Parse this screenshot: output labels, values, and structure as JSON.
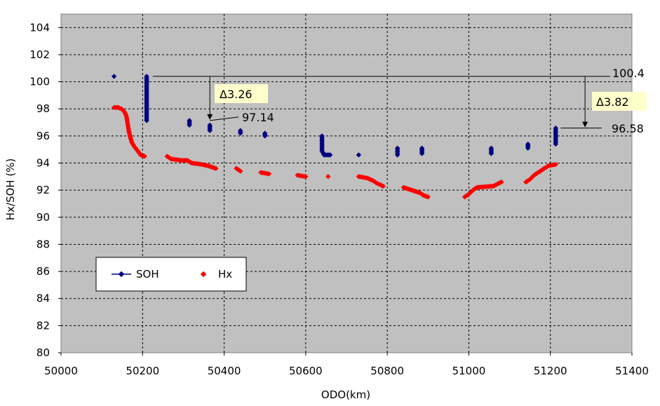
{
  "chart_data": {
    "type": "scatter",
    "xlabel": "ODO(km)",
    "ylabel": "Hx/SOH (%)",
    "xlim": [
      50000,
      51400
    ],
    "ylim": [
      80,
      105
    ],
    "xticks": [
      "50000",
      "50200",
      "50400",
      "50600",
      "50800",
      "51000",
      "51200",
      "51400"
    ],
    "yticks": [
      "80",
      "82",
      "84",
      "86",
      "88",
      "90",
      "92",
      "94",
      "96",
      "98",
      "100",
      "102",
      "104"
    ],
    "grid": true,
    "plot_background": "#c0c0c0",
    "legend_position": "bottom-left",
    "series": [
      {
        "name": "SOH",
        "color": "#000080",
        "marker": "diamond",
        "line": true,
        "points": [
          [
            50130,
            100.4
          ],
          [
            50210,
            100.4
          ],
          [
            50210,
            97.14
          ],
          [
            50315,
            97.14
          ],
          [
            50315,
            96.8
          ],
          [
            50365,
            96.8
          ],
          [
            50365,
            96.4
          ],
          [
            50440,
            96.4
          ],
          [
            50440,
            96.2
          ],
          [
            50500,
            96.2
          ],
          [
            50500,
            96.0
          ],
          [
            50640,
            96.0
          ],
          [
            50640,
            94.9
          ],
          [
            50645,
            94.6
          ],
          [
            50660,
            94.6
          ],
          [
            50730,
            94.6
          ],
          [
            50825,
            94.6
          ],
          [
            50825,
            95.1
          ],
          [
            50885,
            95.1
          ],
          [
            50885,
            94.7
          ],
          [
            51055,
            94.7
          ],
          [
            51055,
            95.1
          ],
          [
            51145,
            95.1
          ],
          [
            51145,
            95.4
          ],
          [
            51213,
            95.4
          ],
          [
            51213,
            96.58
          ]
        ]
      },
      {
        "name": "Hx",
        "color": "#ff0000",
        "marker": "diamond",
        "line": false,
        "points": [
          [
            50130,
            98.1
          ],
          [
            50140,
            98.1
          ],
          [
            50148,
            98.0
          ],
          [
            50155,
            97.8
          ],
          [
            50160,
            97.5
          ],
          [
            50163,
            97.0
          ],
          [
            50166,
            96.4
          ],
          [
            50170,
            95.9
          ],
          [
            50174,
            95.5
          ],
          [
            50180,
            95.2
          ],
          [
            50188,
            94.9
          ],
          [
            50195,
            94.6
          ],
          [
            50205,
            94.5
          ],
          [
            50260,
            94.5
          ],
          [
            50270,
            94.3
          ],
          [
            50295,
            94.2
          ],
          [
            50310,
            94.2
          ],
          [
            50320,
            94.0
          ],
          [
            50345,
            93.9
          ],
          [
            50360,
            93.8
          ],
          [
            50380,
            93.6
          ],
          [
            50430,
            93.6
          ],
          [
            50440,
            93.4
          ],
          [
            50490,
            93.3
          ],
          [
            50510,
            93.2
          ],
          [
            50580,
            93.1
          ],
          [
            50600,
            93.0
          ],
          [
            50655,
            93.0
          ],
          [
            50730,
            93.0
          ],
          [
            50750,
            92.9
          ],
          [
            50765,
            92.7
          ],
          [
            50775,
            92.5
          ],
          [
            50790,
            92.3
          ],
          [
            50840,
            92.2
          ],
          [
            50860,
            92.0
          ],
          [
            50880,
            91.8
          ],
          [
            50890,
            91.6
          ],
          [
            50900,
            91.5
          ],
          [
            50990,
            91.5
          ],
          [
            51000,
            91.7
          ],
          [
            51010,
            92.0
          ],
          [
            51020,
            92.2
          ],
          [
            51060,
            92.3
          ],
          [
            51080,
            92.6
          ],
          [
            51140,
            92.6
          ],
          [
            51150,
            92.8
          ],
          [
            51160,
            93.1
          ],
          [
            51170,
            93.3
          ],
          [
            51185,
            93.6
          ],
          [
            51195,
            93.8
          ],
          [
            51213,
            93.9
          ]
        ]
      }
    ],
    "annotations": {
      "ref_label": "100.4",
      "label_1": "97.14",
      "label_2": "96.58",
      "delta_1": "Δ3.26",
      "delta_2": "Δ3.82"
    }
  }
}
